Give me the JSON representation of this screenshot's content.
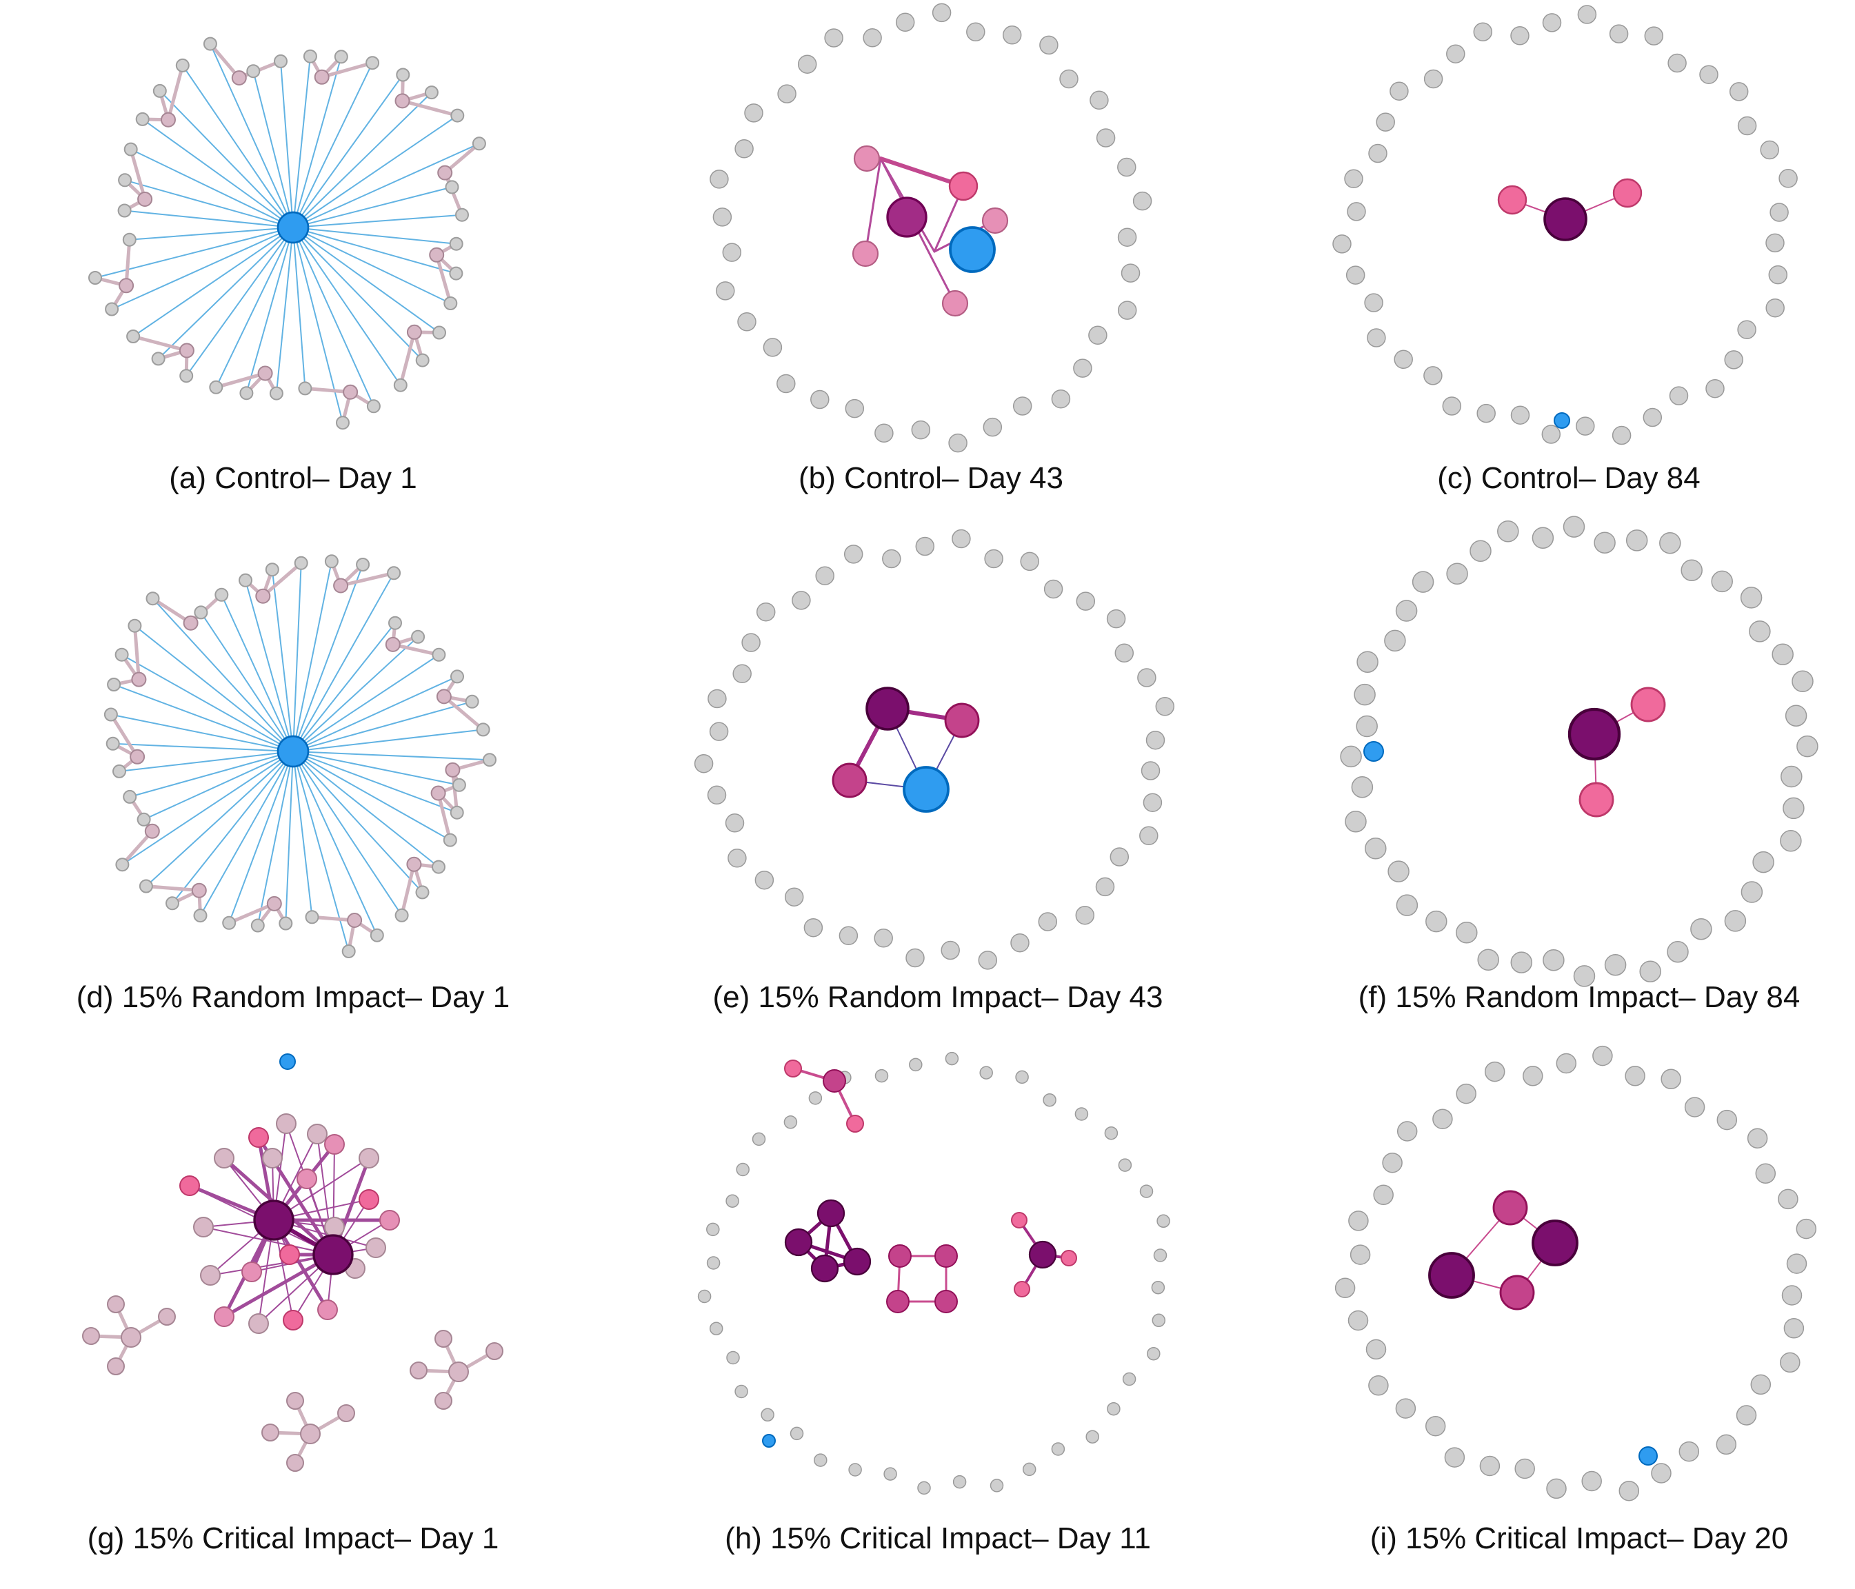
{
  "figure": {
    "captions": [
      "(a) Control– Day 1",
      "(b) Control– Day 43",
      "(c) Control– Day 84",
      "(d) 15% Random Impact– Day 1",
      "(e) 15% Random Impact– Day 43",
      "(f) 15% Random Impact– Day 84",
      "(g) 15% Critical Impact– Day 1",
      "(h) 15% Critical Impact– Day 11",
      "(i) 15% Critical Impact– Day 20"
    ]
  },
  "colors": {
    "hub_blue": "#2f9cf0",
    "blue_edge": "#62b3e3",
    "inactive_node": "#cfcfcf",
    "pale_mauve": "#d8b8c6",
    "light_pink": "#e690b6",
    "pink": "#f06a9c",
    "magenta": "#c4438b",
    "purple": "#a22c86",
    "dark_purple": "#7b0f6d",
    "faded_edge": "#cfb3be"
  }
}
